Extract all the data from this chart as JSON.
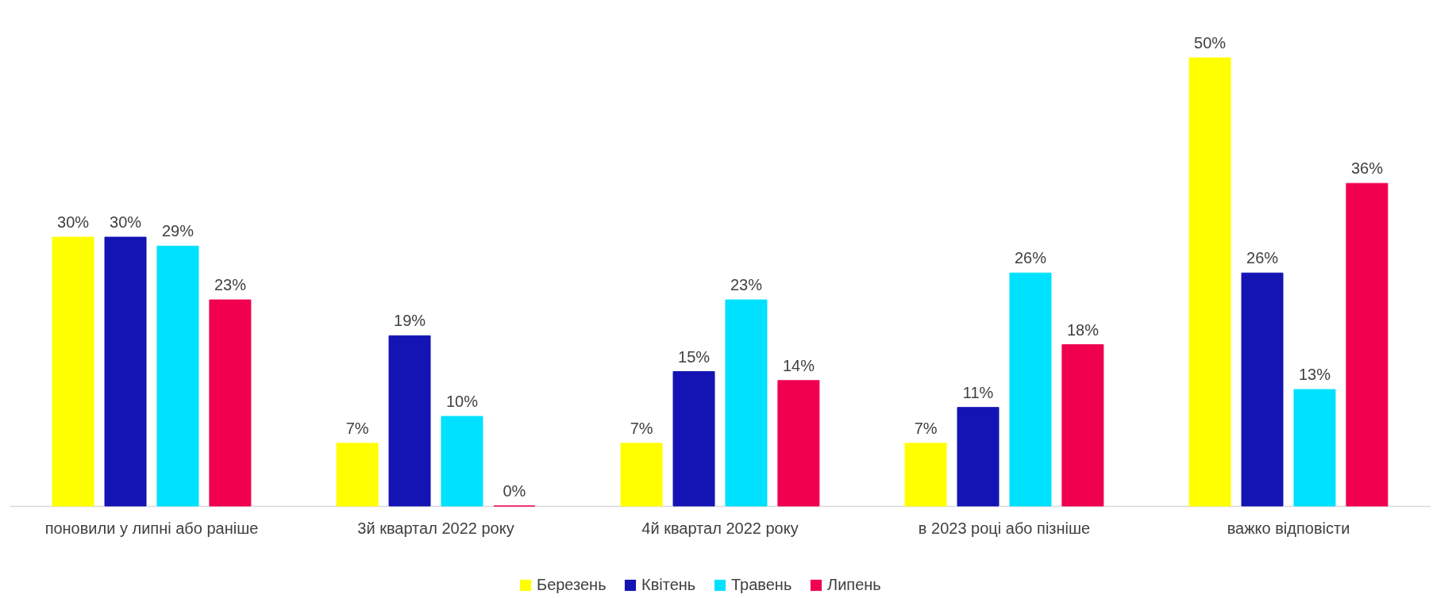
{
  "chart_data": {
    "type": "bar",
    "categories": [
      "поновили у липні або раніше",
      "3й квартал 2022 року",
      "4й квартал 2022 року",
      "в 2023 році або пізніше",
      "важко відповісти"
    ],
    "series": [
      {
        "name": "Березень",
        "color": "#ffff00",
        "values": [
          30,
          7,
          7,
          7,
          50
        ],
        "value_labels": [
          "30%",
          "7%",
          "7%",
          "7%",
          "50%"
        ]
      },
      {
        "name": "Квітень",
        "color": "#1414b4",
        "values": [
          30,
          19,
          15,
          11,
          26
        ],
        "value_labels": [
          "30%",
          "19%",
          "15%",
          "11%",
          "26%"
        ]
      },
      {
        "name": "Травень",
        "color": "#00e1ff",
        "values": [
          29,
          10,
          23,
          26,
          13
        ],
        "value_labels": [
          "29%",
          "10%",
          "23%",
          "26%",
          "13%"
        ]
      },
      {
        "name": "Липень",
        "color": "#f0004f",
        "values": [
          23,
          0,
          14,
          18,
          36
        ],
        "value_labels": [
          "23%",
          "0%",
          "14%",
          "18%",
          "36%"
        ]
      }
    ],
    "legend": "bottom",
    "grid": false
  }
}
